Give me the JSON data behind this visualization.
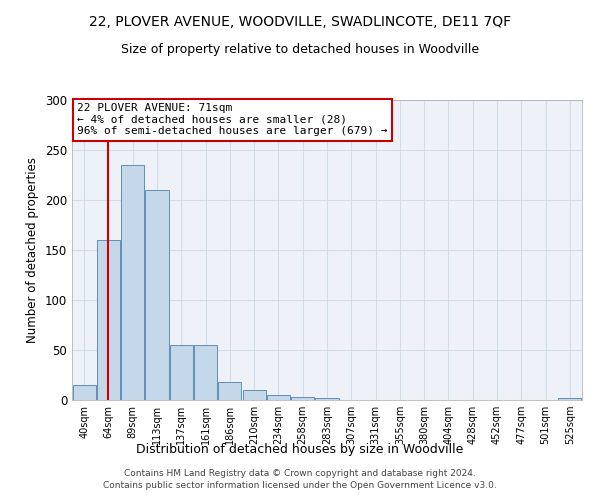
{
  "title": "22, PLOVER AVENUE, WOODVILLE, SWADLINCOTE, DE11 7QF",
  "subtitle": "Size of property relative to detached houses in Woodville",
  "xlabel": "Distribution of detached houses by size in Woodville",
  "ylabel": "Number of detached properties",
  "footer1": "Contains HM Land Registry data © Crown copyright and database right 2024.",
  "footer2": "Contains public sector information licensed under the Open Government Licence v3.0.",
  "categories": [
    "40sqm",
    "64sqm",
    "89sqm",
    "113sqm",
    "137sqm",
    "161sqm",
    "186sqm",
    "210sqm",
    "234sqm",
    "258sqm",
    "283sqm",
    "307sqm",
    "331sqm",
    "355sqm",
    "380sqm",
    "404sqm",
    "428sqm",
    "452sqm",
    "477sqm",
    "501sqm",
    "525sqm"
  ],
  "values": [
    15,
    160,
    235,
    210,
    55,
    55,
    18,
    10,
    5,
    3,
    2,
    0,
    0,
    0,
    0,
    0,
    0,
    0,
    0,
    0,
    2
  ],
  "bar_color": "#c5d8ea",
  "bar_edge_color": "#6090b8",
  "grid_color": "#d0dce8",
  "background_color": "#eef2f8",
  "annotation_text": "22 PLOVER AVENUE: 71sqm\n← 4% of detached houses are smaller (28)\n96% of semi-detached houses are larger (679) →",
  "annotation_box_color": "#ffffff",
  "annotation_box_edge": "#cc0000",
  "property_line_x": 1.0,
  "property_line_color": "#cc0000",
  "ylim": [
    0,
    300
  ],
  "yticks": [
    0,
    50,
    100,
    150,
    200,
    250,
    300
  ]
}
